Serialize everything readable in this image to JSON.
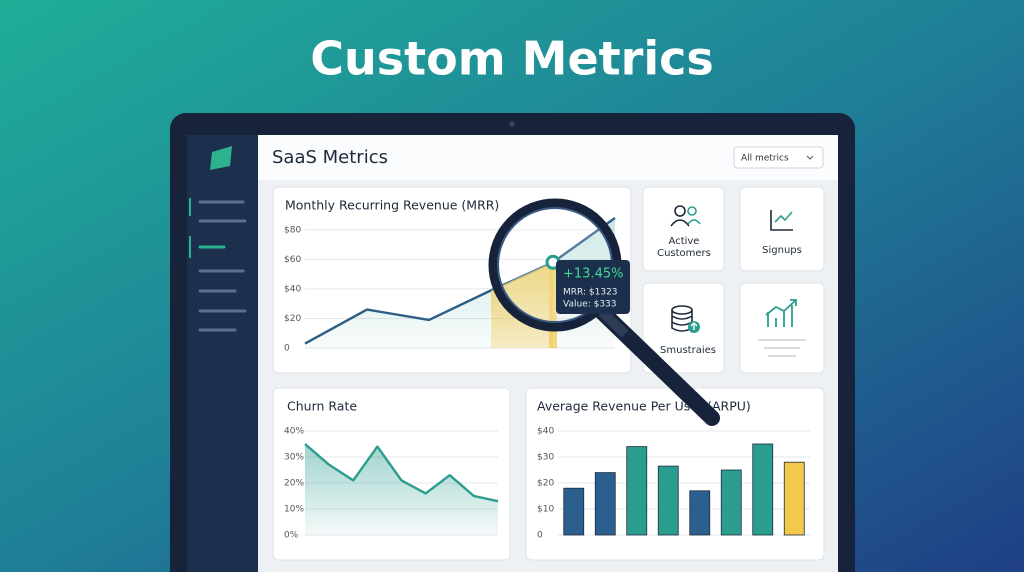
{
  "headline": "Custom Metrics",
  "app": {
    "title": "SaaS Metrics",
    "filter": "All metrics"
  },
  "tiles": [
    [
      "Active",
      "Customers"
    ],
    [
      "Signups"
    ],
    [
      "Smustraies"
    ]
  ],
  "chart_data": [
    {
      "type": "line",
      "title": "Monthly Recurring Revenue (MRR)",
      "values": [
        3,
        26,
        19,
        39,
        58,
        88
      ],
      "color": "#2d5f86",
      "ylim": [
        0,
        90
      ],
      "yticks": [
        {
          "value": 80,
          "label": "$80"
        },
        {
          "value": 60,
          "label": "$60"
        },
        {
          "value": 40,
          "label": "$40"
        },
        {
          "value": 20,
          "label": "$20"
        },
        0
      ],
      "grid": true,
      "annotation": [
        "+13.45%",
        "MRR: $1323",
        "Value: $333"
      ]
    },
    {
      "type": "line",
      "title": "Churn Rate",
      "values": [
        35,
        27,
        21,
        34,
        21,
        16,
        23,
        15,
        13
      ],
      "color": "#2a9d8f",
      "ylim": [
        0,
        40
      ],
      "yticks": [
        {
          "value": 40,
          "label": "40%"
        },
        {
          "value": 30,
          "label": "30%"
        },
        {
          "value": 20,
          "label": "20%"
        },
        {
          "value": 10,
          "label": "10%"
        },
        {
          "value": 0,
          "label": "0%"
        }
      ],
      "grid": true
    },
    {
      "type": "bar",
      "title": "Average Revenue Per User (ARPU)",
      "values": [
        18,
        24,
        34,
        26.5,
        17,
        25,
        35,
        28
      ],
      "colors": [
        "#2b5f8e",
        "#2b5f8e",
        "#2a9d8f",
        "#2a9d8f",
        "#2b5f8e",
        "#2a9d8f",
        "#2a9d8f",
        "#f2c94c"
      ],
      "ylim": [
        0,
        40
      ],
      "yticks": [
        {
          "value": 40,
          "label": "$40"
        },
        {
          "value": 30,
          "label": "$30"
        },
        {
          "value": 20,
          "label": "$20"
        },
        {
          "value": 10,
          "label": "$10"
        },
        0
      ],
      "grid": true
    }
  ]
}
